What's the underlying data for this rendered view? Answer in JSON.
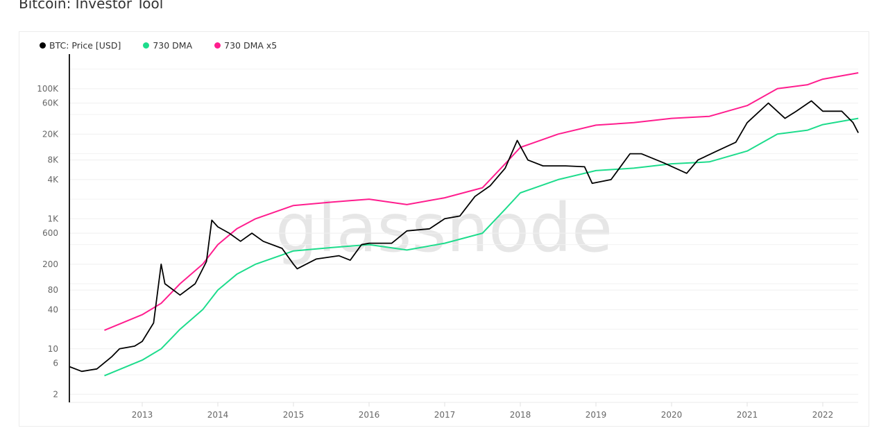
{
  "title": "Bitcoin: Investor Tool",
  "watermark": "glassnode",
  "chart_data": {
    "type": "line",
    "title": "Bitcoin: Investor Tool",
    "yscale": "log",
    "ylim": [
      1.5,
      340000
    ],
    "xlim": [
      2012.04,
      2022.47
    ],
    "grid": true,
    "legend_position": "top-left",
    "y_ticks": [
      {
        "v": 2,
        "label": "2"
      },
      {
        "v": 6,
        "label": "6"
      },
      {
        "v": 10,
        "label": "10"
      },
      {
        "v": 40,
        "label": "40"
      },
      {
        "v": 80,
        "label": "80"
      },
      {
        "v": 200,
        "label": "200"
      },
      {
        "v": 600,
        "label": "600"
      },
      {
        "v": 1000,
        "label": "1K"
      },
      {
        "v": 4000,
        "label": "4K"
      },
      {
        "v": 8000,
        "label": "8K"
      },
      {
        "v": 20000,
        "label": "20K"
      },
      {
        "v": 60000,
        "label": "60K"
      },
      {
        "v": 100000,
        "label": "100K"
      }
    ],
    "y_minor_grid": [
      200000,
      40000,
      10000,
      2000,
      400,
      100,
      20,
      4
    ],
    "x_ticks": [
      "2013",
      "2014",
      "2015",
      "2016",
      "2017",
      "2018",
      "2019",
      "2020",
      "2021",
      "2022"
    ],
    "series": [
      {
        "name": "BTC: Price [USD]",
        "color": "#000000",
        "x": [
          2012.04,
          2012.2,
          2012.4,
          2012.6,
          2012.7,
          2012.9,
          2013.0,
          2013.15,
          2013.25,
          2013.3,
          2013.5,
          2013.7,
          2013.85,
          2013.92,
          2014.0,
          2014.15,
          2014.3,
          2014.45,
          2014.6,
          2014.85,
          2015.0,
          2015.05,
          2015.3,
          2015.6,
          2015.75,
          2015.9,
          2016.0,
          2016.3,
          2016.5,
          2016.8,
          2017.0,
          2017.2,
          2017.4,
          2017.6,
          2017.8,
          2017.96,
          2018.1,
          2018.3,
          2018.6,
          2018.85,
          2018.95,
          2019.2,
          2019.45,
          2019.6,
          2019.9,
          2020.2,
          2020.35,
          2020.6,
          2020.85,
          2021.0,
          2021.28,
          2021.5,
          2021.65,
          2021.85,
          2022.0,
          2022.25,
          2022.4,
          2022.47
        ],
        "y": [
          5.3,
          4.5,
          4.9,
          7.6,
          10,
          11,
          13,
          25,
          200,
          100,
          67,
          100,
          220,
          950,
          750,
          600,
          450,
          600,
          450,
          350,
          200,
          170,
          240,
          270,
          230,
          400,
          420,
          420,
          650,
          700,
          1000,
          1100,
          2200,
          3200,
          6000,
          16000,
          8000,
          6500,
          6500,
          6300,
          3500,
          4000,
          10000,
          10000,
          7200,
          5000,
          8000,
          11000,
          15000,
          30000,
          60000,
          35000,
          45000,
          65000,
          45000,
          45000,
          30000,
          21000
        ]
      },
      {
        "name": "730 DMA",
        "color": "#1ddc8c",
        "x": [
          2012.5,
          2013.0,
          2013.25,
          2013.5,
          2013.8,
          2014.0,
          2014.25,
          2014.5,
          2015.0,
          2015.5,
          2016.0,
          2016.5,
          2017.0,
          2017.5,
          2017.8,
          2018.0,
          2018.5,
          2019.0,
          2019.5,
          2020.0,
          2020.5,
          2021.0,
          2021.4,
          2021.8,
          2022.0,
          2022.47
        ],
        "y": [
          3.85,
          6.7,
          10,
          20,
          40,
          80,
          140,
          200,
          320,
          360,
          400,
          330,
          420,
          600,
          1400,
          2500,
          4000,
          5500,
          6000,
          7000,
          7500,
          11000,
          20000,
          23000,
          28000,
          35000
        ]
      },
      {
        "name": "730 DMA x5",
        "color": "#ff1d8e",
        "x": [
          2012.5,
          2013.0,
          2013.25,
          2013.5,
          2013.8,
          2014.0,
          2014.25,
          2014.5,
          2015.0,
          2015.5,
          2016.0,
          2016.5,
          2017.0,
          2017.5,
          2017.8,
          2018.0,
          2018.5,
          2019.0,
          2019.5,
          2020.0,
          2020.5,
          2021.0,
          2021.4,
          2021.8,
          2022.0,
          2022.47
        ],
        "y": [
          19.25,
          33.5,
          50,
          100,
          200,
          400,
          700,
          1000,
          1600,
          1800,
          2000,
          1650,
          2100,
          3000,
          7000,
          12500,
          20000,
          27500,
          30000,
          35000,
          37500,
          55000,
          100000,
          115000,
          140000,
          175000
        ]
      }
    ]
  }
}
